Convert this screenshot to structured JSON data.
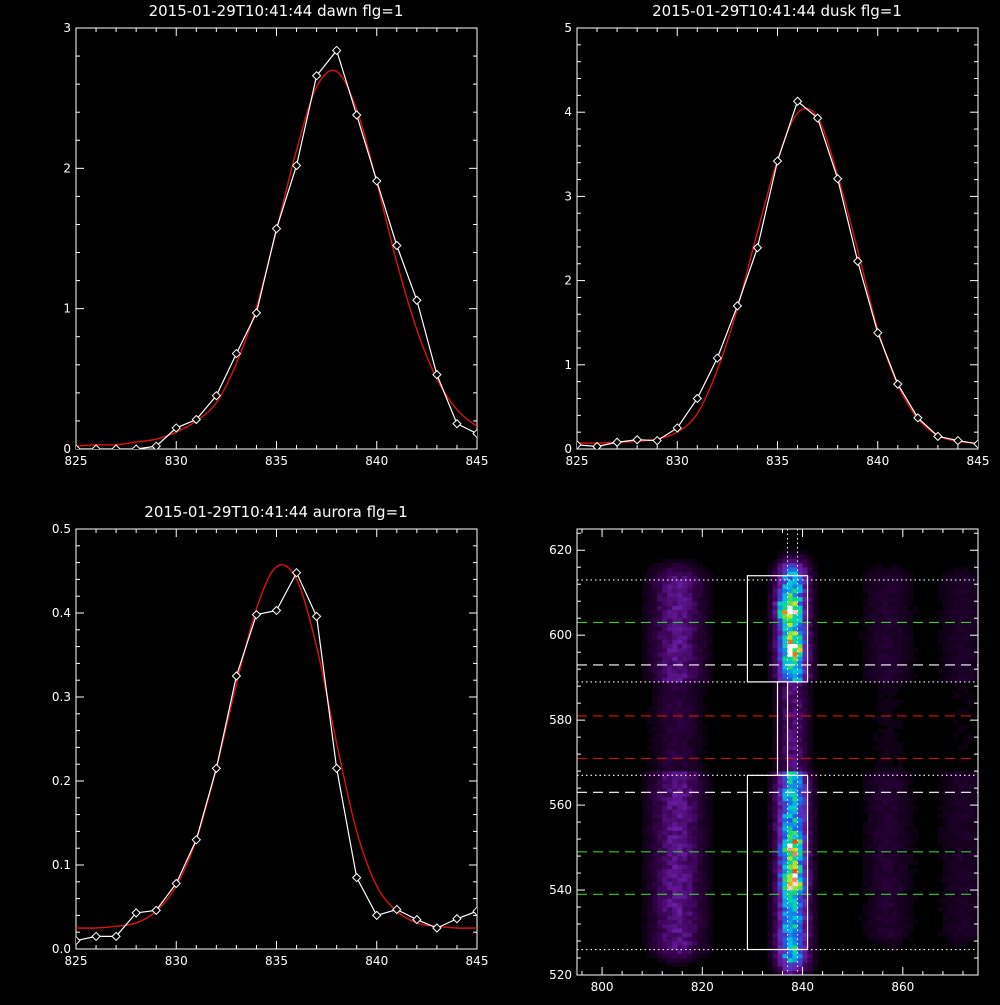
{
  "colors": {
    "background": "#000000",
    "axes": "#ffffff",
    "data_line": "#ffffff",
    "fit_line": "#dd1111",
    "green_dash": "#33cc33",
    "red_dash": "#dd1111",
    "white_dash": "#ffffff"
  },
  "chart_data": [
    {
      "id": "dawn",
      "type": "line",
      "title": "2015-01-29T10:41:44 dawn flg=1",
      "xlim": [
        825,
        845
      ],
      "ylim": [
        0,
        3
      ],
      "xticks": [
        825,
        830,
        835,
        840,
        845
      ],
      "yticks": [
        0,
        1,
        2,
        3
      ],
      "xtick_labels": [
        "825",
        "830",
        "835",
        "840",
        "845"
      ],
      "ytick_labels": [
        "0",
        "1",
        "2",
        "3"
      ],
      "series": [
        {
          "role": "data",
          "marker": "diamond",
          "x": [
            825,
            826,
            827,
            828,
            829,
            830,
            831,
            832,
            833,
            834,
            835,
            836,
            837,
            838,
            839,
            840,
            841,
            842,
            843,
            844,
            845
          ],
          "y": [
            0.0,
            0.0,
            0.0,
            0.0,
            0.02,
            0.15,
            0.21,
            0.38,
            0.68,
            0.97,
            1.57,
            2.02,
            2.66,
            2.84,
            2.38,
            1.91,
            1.45,
            1.06,
            0.53,
            0.18,
            0.11
          ]
        },
        {
          "role": "fit",
          "x": [
            825,
            826,
            827,
            828,
            829,
            830,
            831,
            832,
            833,
            834,
            835,
            836,
            837,
            838,
            839,
            840,
            841,
            842,
            843,
            844,
            845
          ],
          "y": [
            0.02,
            0.03,
            0.03,
            0.05,
            0.07,
            0.12,
            0.2,
            0.33,
            0.61,
            1.01,
            1.56,
            2.13,
            2.58,
            2.69,
            2.42,
            1.9,
            1.33,
            0.85,
            0.5,
            0.28,
            0.16
          ]
        }
      ]
    },
    {
      "id": "dusk",
      "type": "line",
      "title": "2015-01-29T10:41:44 dusk flg=1",
      "xlim": [
        825,
        845
      ],
      "ylim": [
        0,
        5
      ],
      "xticks": [
        825,
        830,
        835,
        840,
        845
      ],
      "yticks": [
        0,
        1,
        2,
        3,
        4,
        5
      ],
      "xtick_labels": [
        "825",
        "830",
        "835",
        "840",
        "845"
      ],
      "ytick_labels": [
        "0",
        "1",
        "2",
        "3",
        "4",
        "5"
      ],
      "series": [
        {
          "role": "data",
          "marker": "diamond",
          "x": [
            825,
            826,
            827,
            828,
            829,
            830,
            831,
            832,
            833,
            834,
            835,
            836,
            837,
            838,
            839,
            840,
            841,
            842,
            843,
            844,
            845
          ],
          "y": [
            0.05,
            0.03,
            0.08,
            0.11,
            0.1,
            0.25,
            0.6,
            1.08,
            1.7,
            2.39,
            3.42,
            4.13,
            3.93,
            3.21,
            2.23,
            1.38,
            0.77,
            0.37,
            0.15,
            0.1,
            0.06
          ]
        },
        {
          "role": "fit",
          "x": [
            825,
            826,
            827,
            828,
            829,
            830,
            831,
            832,
            833,
            834,
            835,
            836,
            837,
            838,
            839,
            840,
            841,
            842,
            843,
            844,
            845
          ],
          "y": [
            0.07,
            0.07,
            0.08,
            0.09,
            0.12,
            0.2,
            0.42,
            0.94,
            1.67,
            2.58,
            3.43,
            3.99,
            3.94,
            3.25,
            2.36,
            1.42,
            0.76,
            0.36,
            0.16,
            0.09,
            0.07
          ]
        }
      ]
    },
    {
      "id": "aurora",
      "type": "line",
      "title": "2015-01-29T10:41:44 aurora flg=1",
      "xlim": [
        825,
        845
      ],
      "ylim": [
        0,
        0.5
      ],
      "xticks": [
        825,
        830,
        835,
        840,
        845
      ],
      "yticks": [
        0,
        0.1,
        0.2,
        0.3,
        0.4,
        0.5
      ],
      "xtick_labels": [
        "825",
        "830",
        "835",
        "840",
        "845"
      ],
      "ytick_labels": [
        "0.0",
        "0.1",
        "0.2",
        "0.3",
        "0.4",
        "0.5"
      ],
      "series": [
        {
          "role": "data",
          "marker": "diamond",
          "x": [
            825,
            826,
            827,
            828,
            829,
            830,
            831,
            832,
            833,
            834,
            835,
            836,
            837,
            838,
            839,
            840,
            841,
            842,
            843,
            844,
            845
          ],
          "y": [
            0.01,
            0.015,
            0.015,
            0.043,
            0.046,
            0.078,
            0.13,
            0.215,
            0.325,
            0.398,
            0.403,
            0.448,
            0.396,
            0.215,
            0.085,
            0.04,
            0.047,
            0.035,
            0.025,
            0.036,
            0.045
          ]
        },
        {
          "role": "fit",
          "x": [
            825,
            826,
            827,
            828,
            829,
            830,
            831,
            832,
            833,
            834,
            835,
            836,
            837,
            838,
            839,
            840,
            841,
            842,
            843,
            844,
            845
          ],
          "y": [
            0.025,
            0.025,
            0.027,
            0.031,
            0.045,
            0.075,
            0.13,
            0.215,
            0.315,
            0.405,
            0.455,
            0.44,
            0.36,
            0.245,
            0.14,
            0.075,
            0.045,
            0.031,
            0.027,
            0.025,
            0.025
          ]
        }
      ]
    },
    {
      "id": "image",
      "type": "heatmap",
      "xlim": [
        795,
        875
      ],
      "ylim": [
        520,
        625
      ],
      "xticks": [
        800,
        820,
        840,
        860
      ],
      "yticks": [
        520,
        540,
        560,
        580,
        600,
        620
      ],
      "xtick_labels": [
        "800",
        "820",
        "840",
        "860"
      ],
      "ytick_labels": [
        "520",
        "540",
        "560",
        "580",
        "600",
        "620"
      ],
      "columns": [
        {
          "x": 815,
          "width": 5,
          "y_range": [
            527,
            612
          ],
          "peak": 0.4
        },
        {
          "x": 838,
          "width": 3,
          "y_range": [
            524,
            613
          ],
          "peak": 1.0
        },
        {
          "x": 857,
          "width": 5,
          "y_range": [
            530,
            612
          ],
          "peak": 0.15
        },
        {
          "x": 872,
          "width": 5,
          "y_range": [
            530,
            612
          ],
          "peak": 0.12
        }
      ],
      "hot_spots": [
        {
          "x": 837,
          "y": 606,
          "peak": 1.0
        },
        {
          "x": 838,
          "y": 597,
          "peak": 0.8
        },
        {
          "x": 838,
          "y": 542,
          "peak": 0.85
        },
        {
          "x": 838,
          "y": 550,
          "peak": 0.7
        }
      ],
      "hlines": [
        {
          "y": 613,
          "style": "dotted",
          "color": "white"
        },
        {
          "y": 603,
          "style": "dashed",
          "color": "green"
        },
        {
          "y": 593,
          "style": "dashed",
          "color": "white"
        },
        {
          "y": 589,
          "style": "dotted",
          "color": "white"
        },
        {
          "y": 581,
          "style": "dashed",
          "color": "red"
        },
        {
          "y": 571,
          "style": "dashed",
          "color": "red"
        },
        {
          "y": 567,
          "style": "dotted",
          "color": "white"
        },
        {
          "y": 563,
          "style": "dashed",
          "color": "white"
        },
        {
          "y": 549,
          "style": "dashed",
          "color": "green"
        },
        {
          "y": 539,
          "style": "dashed",
          "color": "green"
        },
        {
          "y": 526,
          "style": "dotted",
          "color": "white"
        }
      ],
      "vlines": [
        {
          "x": 837,
          "style": "dotted",
          "color": "white"
        },
        {
          "x": 839,
          "style": "dotted",
          "color": "white"
        }
      ],
      "boxes": [
        {
          "x": [
            829,
            841
          ],
          "y": [
            589,
            614
          ]
        },
        {
          "x": [
            835,
            837
          ],
          "y": [
            567,
            589
          ]
        },
        {
          "x": [
            829,
            841
          ],
          "y": [
            526,
            567
          ]
        }
      ]
    }
  ]
}
